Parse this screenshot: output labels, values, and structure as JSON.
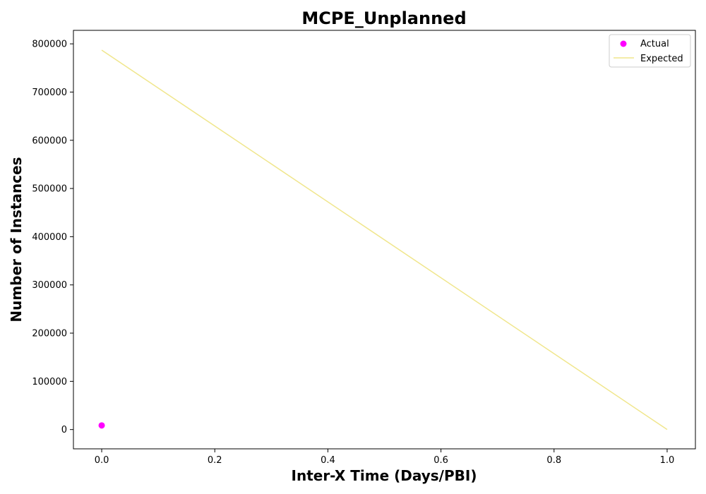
{
  "chart_data": {
    "type": "scatter",
    "title": "MCPE_Unplanned",
    "xlabel": "Inter-X Time (Days/PBI)",
    "ylabel": "Number of Instances",
    "xlim": [
      -0.05,
      1.05
    ],
    "ylim": [
      -40000,
      828000
    ],
    "xticks": [
      0.0,
      0.2,
      0.4,
      0.6,
      0.8,
      1.0
    ],
    "xtick_labels": [
      "0.0",
      "0.2",
      "0.4",
      "0.6",
      "0.8",
      "1.0"
    ],
    "yticks": [
      0,
      100000,
      200000,
      300000,
      400000,
      500000,
      600000,
      700000,
      800000
    ],
    "ytick_labels": [
      "0",
      "100000",
      "200000",
      "300000",
      "400000",
      "500000",
      "600000",
      "700000",
      "800000"
    ],
    "grid": false,
    "legend_position": "top-right",
    "series": [
      {
        "name": "Actual",
        "kind": "scatter",
        "color": "#ff00ff",
        "points": [
          {
            "x": 0.0,
            "y": 8500
          }
        ]
      },
      {
        "name": "Expected",
        "kind": "line",
        "color": "#f0e68c",
        "points": [
          {
            "x": 0.0,
            "y": 787000
          },
          {
            "x": 1.0,
            "y": 0
          }
        ]
      }
    ]
  }
}
